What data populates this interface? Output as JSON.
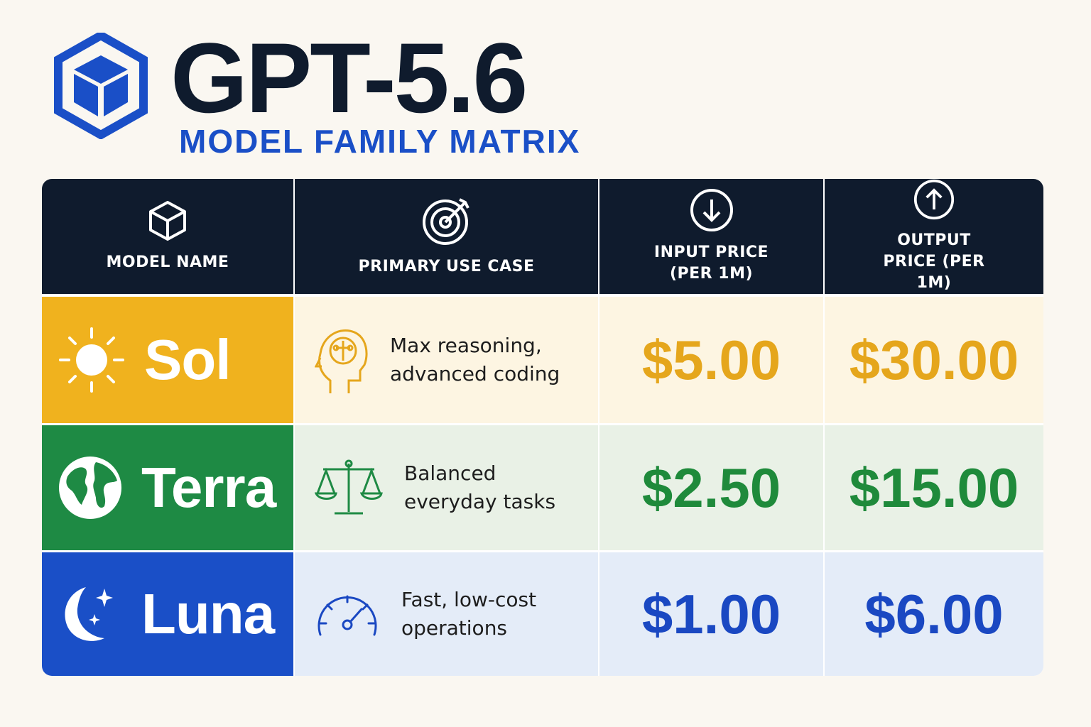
{
  "header": {
    "title": "GPT-5.6",
    "subtitle": "MODEL FAMILY MATRIX"
  },
  "table": {
    "columns": [
      "MODEL NAME",
      "PRIMARY USE CASE",
      "INPUT PRICE (PER 1M)",
      "OUTPUT PRICE (PER 1M)"
    ],
    "rows": [
      [
        "Sol",
        "Max reasoning, advanced coding",
        "$5.00",
        "$30.00"
      ],
      [
        "Terra",
        "Balanced everyday tasks",
        "$2.50",
        "$15.00"
      ],
      [
        "Luna",
        "Fast, low-cost operations",
        "$1.00",
        "$6.00"
      ]
    ]
  }
}
